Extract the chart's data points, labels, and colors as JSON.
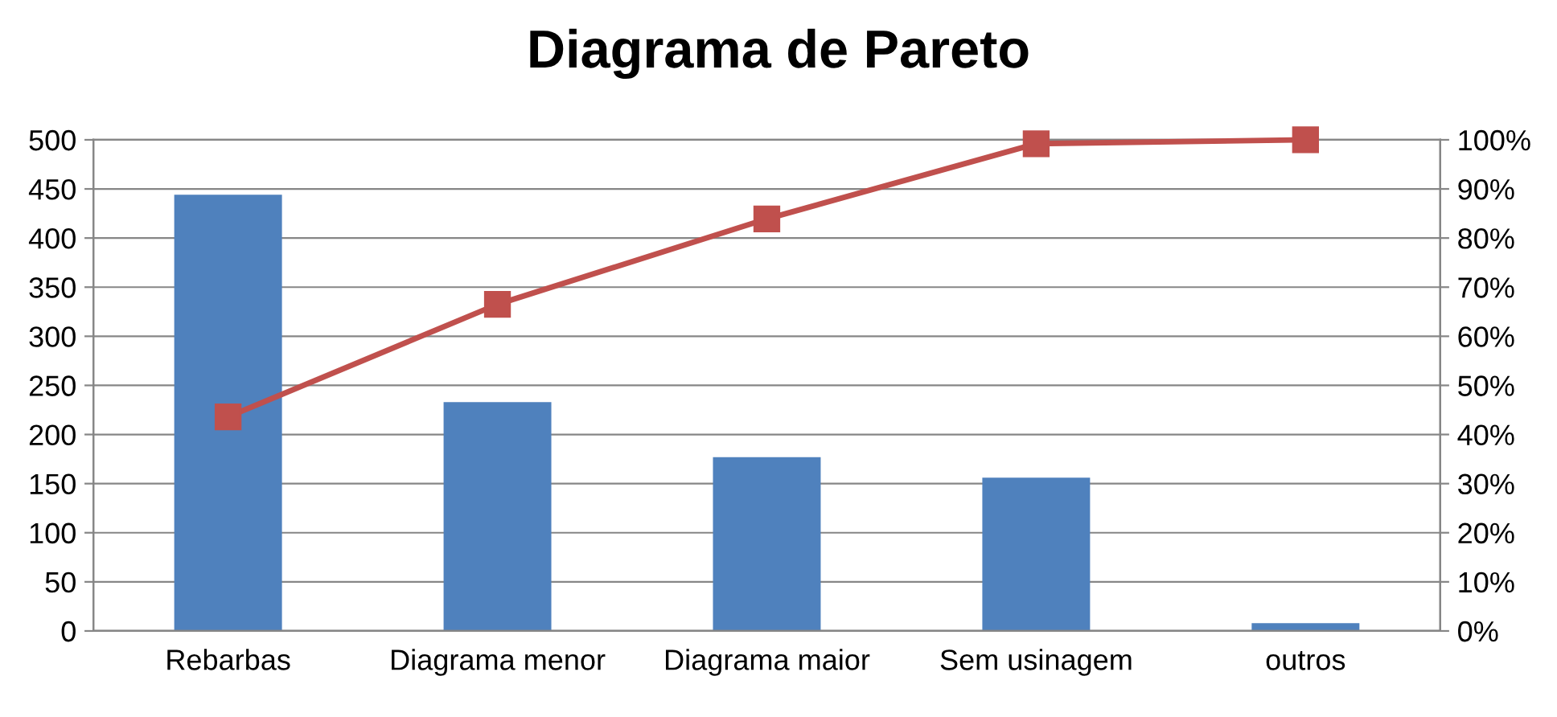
{
  "chart_data": {
    "type": "bar",
    "title": "Diagrama de Pareto",
    "categories": [
      "Rebarbas",
      "Diagrama menor",
      "Diagrama maior",
      "Sem usinagem",
      "outros"
    ],
    "series": [
      {
        "color": "#4f81bd",
        "values": [
          444,
          233,
          177,
          156,
          8
        ]
      },
      {
        "type": "line",
        "axis": "y2",
        "color": "#c0504d",
        "marker": "square",
        "values": [
          43.6,
          66.5,
          83.9,
          99.2,
          100
        ]
      }
    ],
    "ylim": [
      0,
      500
    ],
    "yticks": [
      0,
      50,
      100,
      150,
      200,
      250,
      300,
      350,
      400,
      450,
      500
    ],
    "y2lim": [
      0,
      100
    ],
    "y2ticks": [
      {
        "value": 0,
        "label": "0%"
      },
      {
        "value": 10,
        "label": "10%"
      },
      {
        "value": 20,
        "label": "20%"
      },
      {
        "value": 30,
        "label": "30%"
      },
      {
        "value": 40,
        "label": "40%"
      },
      {
        "value": 50,
        "label": "50%"
      },
      {
        "value": 60,
        "label": "60%"
      },
      {
        "value": 70,
        "label": "70%"
      },
      {
        "value": 80,
        "label": "80%"
      },
      {
        "value": 90,
        "label": "90%"
      },
      {
        "value": 100,
        "label": "100%"
      }
    ],
    "grid": "y"
  }
}
